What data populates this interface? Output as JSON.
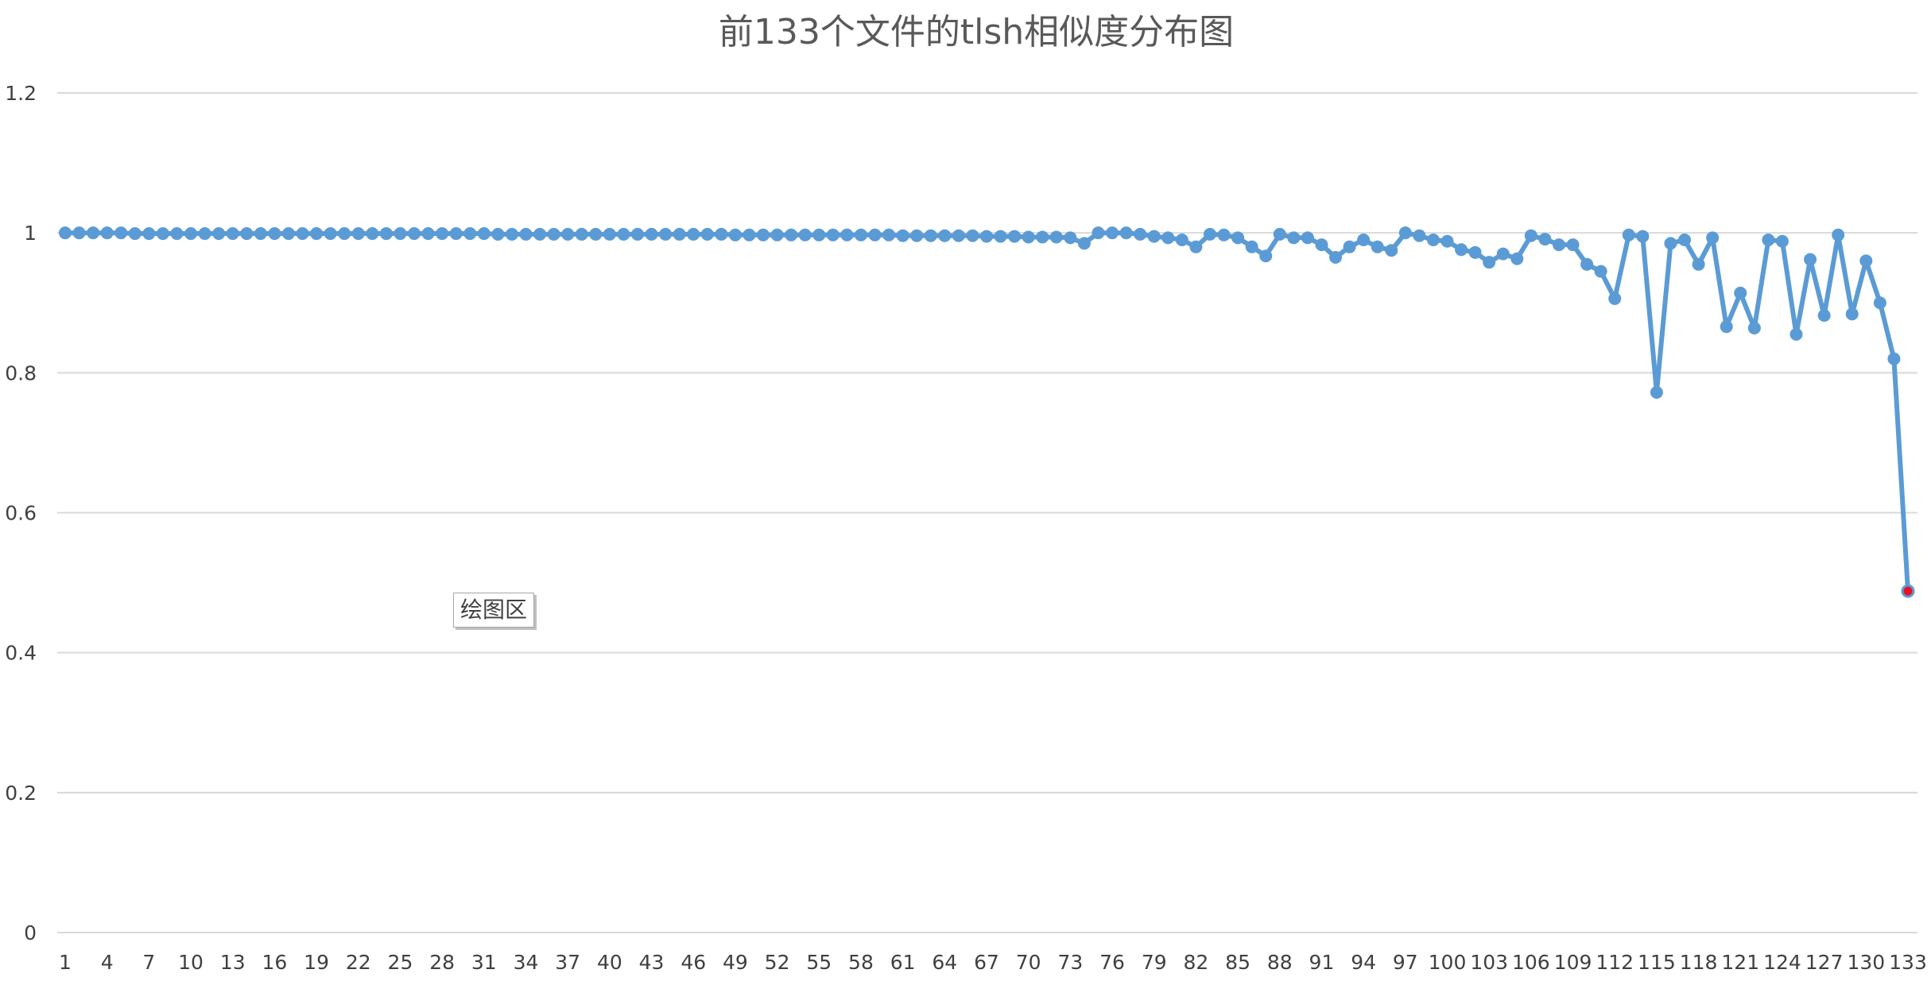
{
  "chart_data": {
    "type": "line",
    "title": "前133个文件的tlsh相似度分布图",
    "xlabel": "",
    "ylabel": "",
    "ylim": [
      0,
      1.2
    ],
    "y_ticks": [
      "0",
      "0.2",
      "0.4",
      "0.6",
      "0.8",
      "1",
      "1.2"
    ],
    "x_tick_labels": [
      "1",
      "4",
      "7",
      "10",
      "13",
      "16",
      "19",
      "22",
      "25",
      "28",
      "31",
      "34",
      "37",
      "40",
      "43",
      "46",
      "49",
      "52",
      "55",
      "58",
      "61",
      "64",
      "67",
      "70",
      "73",
      "76",
      "79",
      "82",
      "85",
      "88",
      "91",
      "94",
      "97",
      "100",
      "103",
      "106",
      "109",
      "112",
      "115",
      "118",
      "121",
      "124",
      "127",
      "130",
      "133"
    ],
    "grid": true,
    "legend": "none",
    "series_color": "#5b9bd5",
    "highlight_color": "#e81123",
    "highlight_index": 133,
    "x": [
      1,
      2,
      3,
      4,
      5,
      6,
      7,
      8,
      9,
      10,
      11,
      12,
      13,
      14,
      15,
      16,
      17,
      18,
      19,
      20,
      21,
      22,
      23,
      24,
      25,
      26,
      27,
      28,
      29,
      30,
      31,
      32,
      33,
      34,
      35,
      36,
      37,
      38,
      39,
      40,
      41,
      42,
      43,
      44,
      45,
      46,
      47,
      48,
      49,
      50,
      51,
      52,
      53,
      54,
      55,
      56,
      57,
      58,
      59,
      60,
      61,
      62,
      63,
      64,
      65,
      66,
      67,
      68,
      69,
      70,
      71,
      72,
      73,
      74,
      75,
      76,
      77,
      78,
      79,
      80,
      81,
      82,
      83,
      84,
      85,
      86,
      87,
      88,
      89,
      90,
      91,
      92,
      93,
      94,
      95,
      96,
      97,
      98,
      99,
      100,
      101,
      102,
      103,
      104,
      105,
      106,
      107,
      108,
      109,
      110,
      111,
      112,
      113,
      114,
      115,
      116,
      117,
      118,
      119,
      120,
      121,
      122,
      123,
      124,
      125,
      126,
      127,
      128,
      129,
      130,
      131,
      132,
      133
    ],
    "values": [
      1.0,
      1.0,
      1.0,
      1.0,
      1.0,
      0.999,
      0.999,
      0.999,
      0.999,
      0.999,
      0.999,
      0.999,
      0.999,
      0.999,
      0.999,
      0.999,
      0.999,
      0.999,
      0.999,
      0.999,
      0.999,
      0.999,
      0.999,
      0.999,
      0.999,
      0.999,
      0.999,
      0.999,
      0.999,
      0.999,
      0.999,
      0.998,
      0.998,
      0.998,
      0.998,
      0.998,
      0.998,
      0.998,
      0.998,
      0.998,
      0.998,
      0.998,
      0.998,
      0.998,
      0.998,
      0.998,
      0.998,
      0.998,
      0.997,
      0.997,
      0.997,
      0.997,
      0.997,
      0.997,
      0.997,
      0.997,
      0.997,
      0.997,
      0.997,
      0.997,
      0.996,
      0.996,
      0.996,
      0.996,
      0.996,
      0.996,
      0.995,
      0.995,
      0.995,
      0.994,
      0.994,
      0.994,
      0.993,
      0.985,
      1.0,
      1.0,
      1.0,
      0.998,
      0.995,
      0.993,
      0.99,
      0.98,
      0.998,
      0.997,
      0.993,
      0.98,
      0.967,
      0.998,
      0.993,
      0.993,
      0.983,
      0.965,
      0.98,
      0.99,
      0.98,
      0.975,
      1.0,
      0.996,
      0.99,
      0.988,
      0.976,
      0.972,
      0.958,
      0.97,
      0.963,
      0.996,
      0.991,
      0.983,
      0.983,
      0.955,
      0.945,
      0.906,
      0.997,
      0.995,
      0.772,
      0.985,
      0.99,
      0.955,
      0.993,
      0.866,
      0.914,
      0.864,
      0.99,
      0.988,
      0.855,
      0.962,
      0.882,
      0.997,
      0.884,
      0.96,
      0.9,
      0.82,
      0.488
    ]
  },
  "tooltip": {
    "label": "绘图区"
  }
}
